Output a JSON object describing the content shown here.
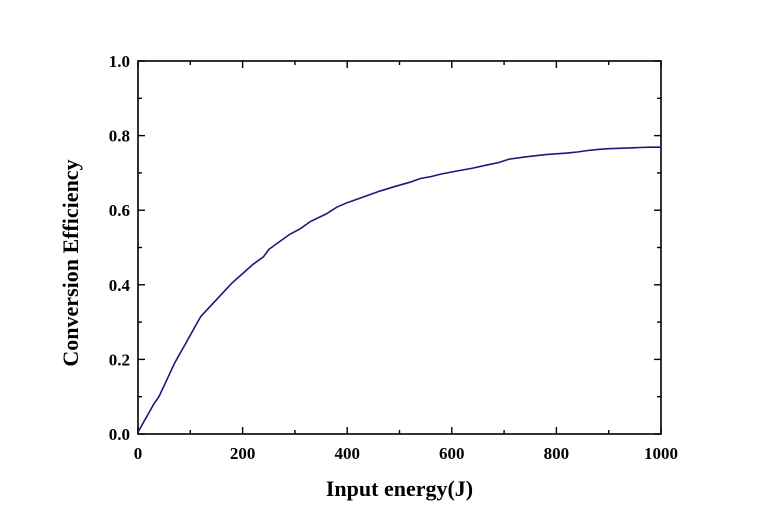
{
  "chart_data": {
    "type": "line",
    "xlabel": "Input energy(J)",
    "ylabel": "Conversion Efficiency",
    "xlim": [
      0,
      1000
    ],
    "ylim": [
      0,
      1.0
    ],
    "x_ticks": [
      "0",
      "200",
      "400",
      "600",
      "800",
      "1000"
    ],
    "y_ticks": [
      "0.0",
      "0.2",
      "0.4",
      "0.6",
      "0.8",
      "1.0"
    ],
    "grid": false,
    "legend": "none",
    "series_color": "#1a1a7a",
    "series": [
      {
        "x": [
          0,
          10,
          20,
          30,
          40,
          50,
          60,
          70,
          80,
          90,
          100,
          110,
          120,
          140,
          160,
          180,
          200,
          220,
          240,
          250,
          270,
          290,
          310,
          330,
          360,
          380,
          400,
          430,
          460,
          490,
          520,
          540,
          560,
          580,
          610,
          640,
          670,
          690,
          710,
          740,
          780,
          820,
          840,
          860,
          880,
          900,
          920,
          940,
          960,
          980,
          1000
        ],
        "y": [
          0.005,
          0.03,
          0.055,
          0.08,
          0.1,
          0.13,
          0.16,
          0.19,
          0.215,
          0.24,
          0.265,
          0.29,
          0.315,
          0.345,
          0.375,
          0.405,
          0.43,
          0.455,
          0.475,
          0.495,
          0.515,
          0.535,
          0.55,
          0.57,
          0.59,
          0.608,
          0.62,
          0.635,
          0.65,
          0.663,
          0.675,
          0.685,
          0.69,
          0.697,
          0.705,
          0.713,
          0.722,
          0.728,
          0.737,
          0.743,
          0.749,
          0.753,
          0.756,
          0.76,
          0.763,
          0.765,
          0.766,
          0.767,
          0.768,
          0.769,
          0.769
        ]
      }
    ]
  }
}
